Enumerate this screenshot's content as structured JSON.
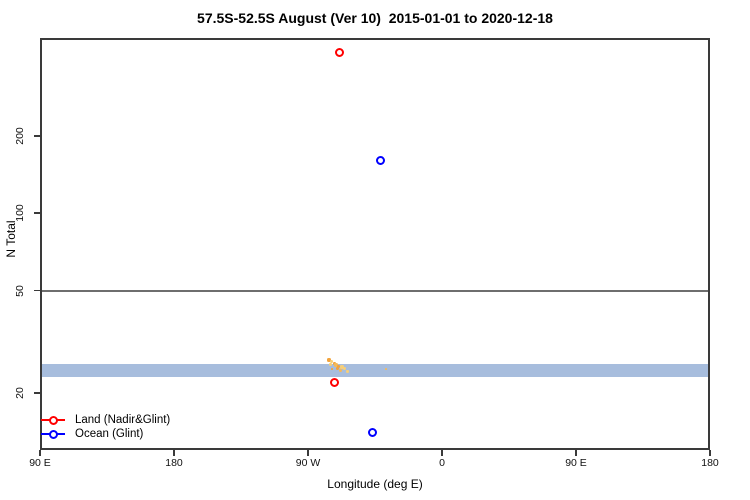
{
  "chart_data": {
    "type": "scatter",
    "title": "57.5S-52.5S August (Ver 10)  2015-01-01 to 2020-12-18",
    "xlabel": "Longitude (deg E)",
    "ylabel": "N Total",
    "x_axis": {
      "scale": "linear",
      "range": [
        90,
        540
      ],
      "ticks": [
        {
          "pos": 90,
          "label": "90 E"
        },
        {
          "pos": 180,
          "label": "180"
        },
        {
          "pos": 270,
          "label": "90 W"
        },
        {
          "pos": 360,
          "label": "0"
        },
        {
          "pos": 450,
          "label": "90 E"
        },
        {
          "pos": 540,
          "label": "180"
        }
      ]
    },
    "y_axis": {
      "scale": "log",
      "range": [
        12,
        480
      ],
      "ticks": [
        20,
        50,
        100,
        200
      ]
    },
    "grid": "off",
    "reference_line": {
      "value": 50,
      "color": "#6e6e6e"
    },
    "reference_band": {
      "from": 23,
      "to": 26,
      "color": "#a7bddd"
    },
    "series": [
      {
        "name": "Land (Nadir&Glint)",
        "color": "#ff0000",
        "marker": "open-circle",
        "points": [
          {
            "lon": 291,
            "n": 420
          },
          {
            "lon": 288,
            "n": 22
          }
        ]
      },
      {
        "name": "Ocean (Glint)",
        "color": "#0000ff",
        "marker": "open-circle",
        "points": [
          {
            "lon": 319,
            "n": 160
          },
          {
            "lon": 313,
            "n": 14
          }
        ]
      }
    ],
    "extra_marks": [
      {
        "lon": 284.4,
        "n": 26.8,
        "color": "#f2a33c",
        "size": 4
      },
      {
        "lon": 286.1,
        "n": 26.5,
        "color": "#f6cf79",
        "size": 3
      },
      {
        "lon": 287.8,
        "n": 26.1,
        "color": "#f2a33c",
        "size": 3
      },
      {
        "lon": 285.1,
        "n": 25.9,
        "color": "#f6cf79",
        "size": 3
      },
      {
        "lon": 289.1,
        "n": 25.6,
        "color": "#f4b95a",
        "size": 4
      },
      {
        "lon": 290.8,
        "n": 25.4,
        "color": "#f2a33c",
        "size": 3
      },
      {
        "lon": 292.8,
        "n": 25.2,
        "color": "#f6cf79",
        "size": 4
      },
      {
        "lon": 289.8,
        "n": 25.0,
        "color": "#f2a33c",
        "size": 3
      },
      {
        "lon": 294.2,
        "n": 24.8,
        "color": "#f6cf79",
        "size": 3
      },
      {
        "lon": 291.5,
        "n": 24.5,
        "color": "#f4b95a",
        "size": 3
      },
      {
        "lon": 296.2,
        "n": 24.3,
        "color": "#f6cf79",
        "size": 3
      },
      {
        "lon": 286.4,
        "n": 24.8,
        "color": "#f2a33c",
        "size": 2
      },
      {
        "lon": 322.5,
        "n": 24.8,
        "color": "#f4b95a",
        "size": 2
      }
    ],
    "legend": {
      "position": "bottom-left"
    },
    "frame_color": "#3a3a3a",
    "tick_color": "#3a3a3a"
  }
}
